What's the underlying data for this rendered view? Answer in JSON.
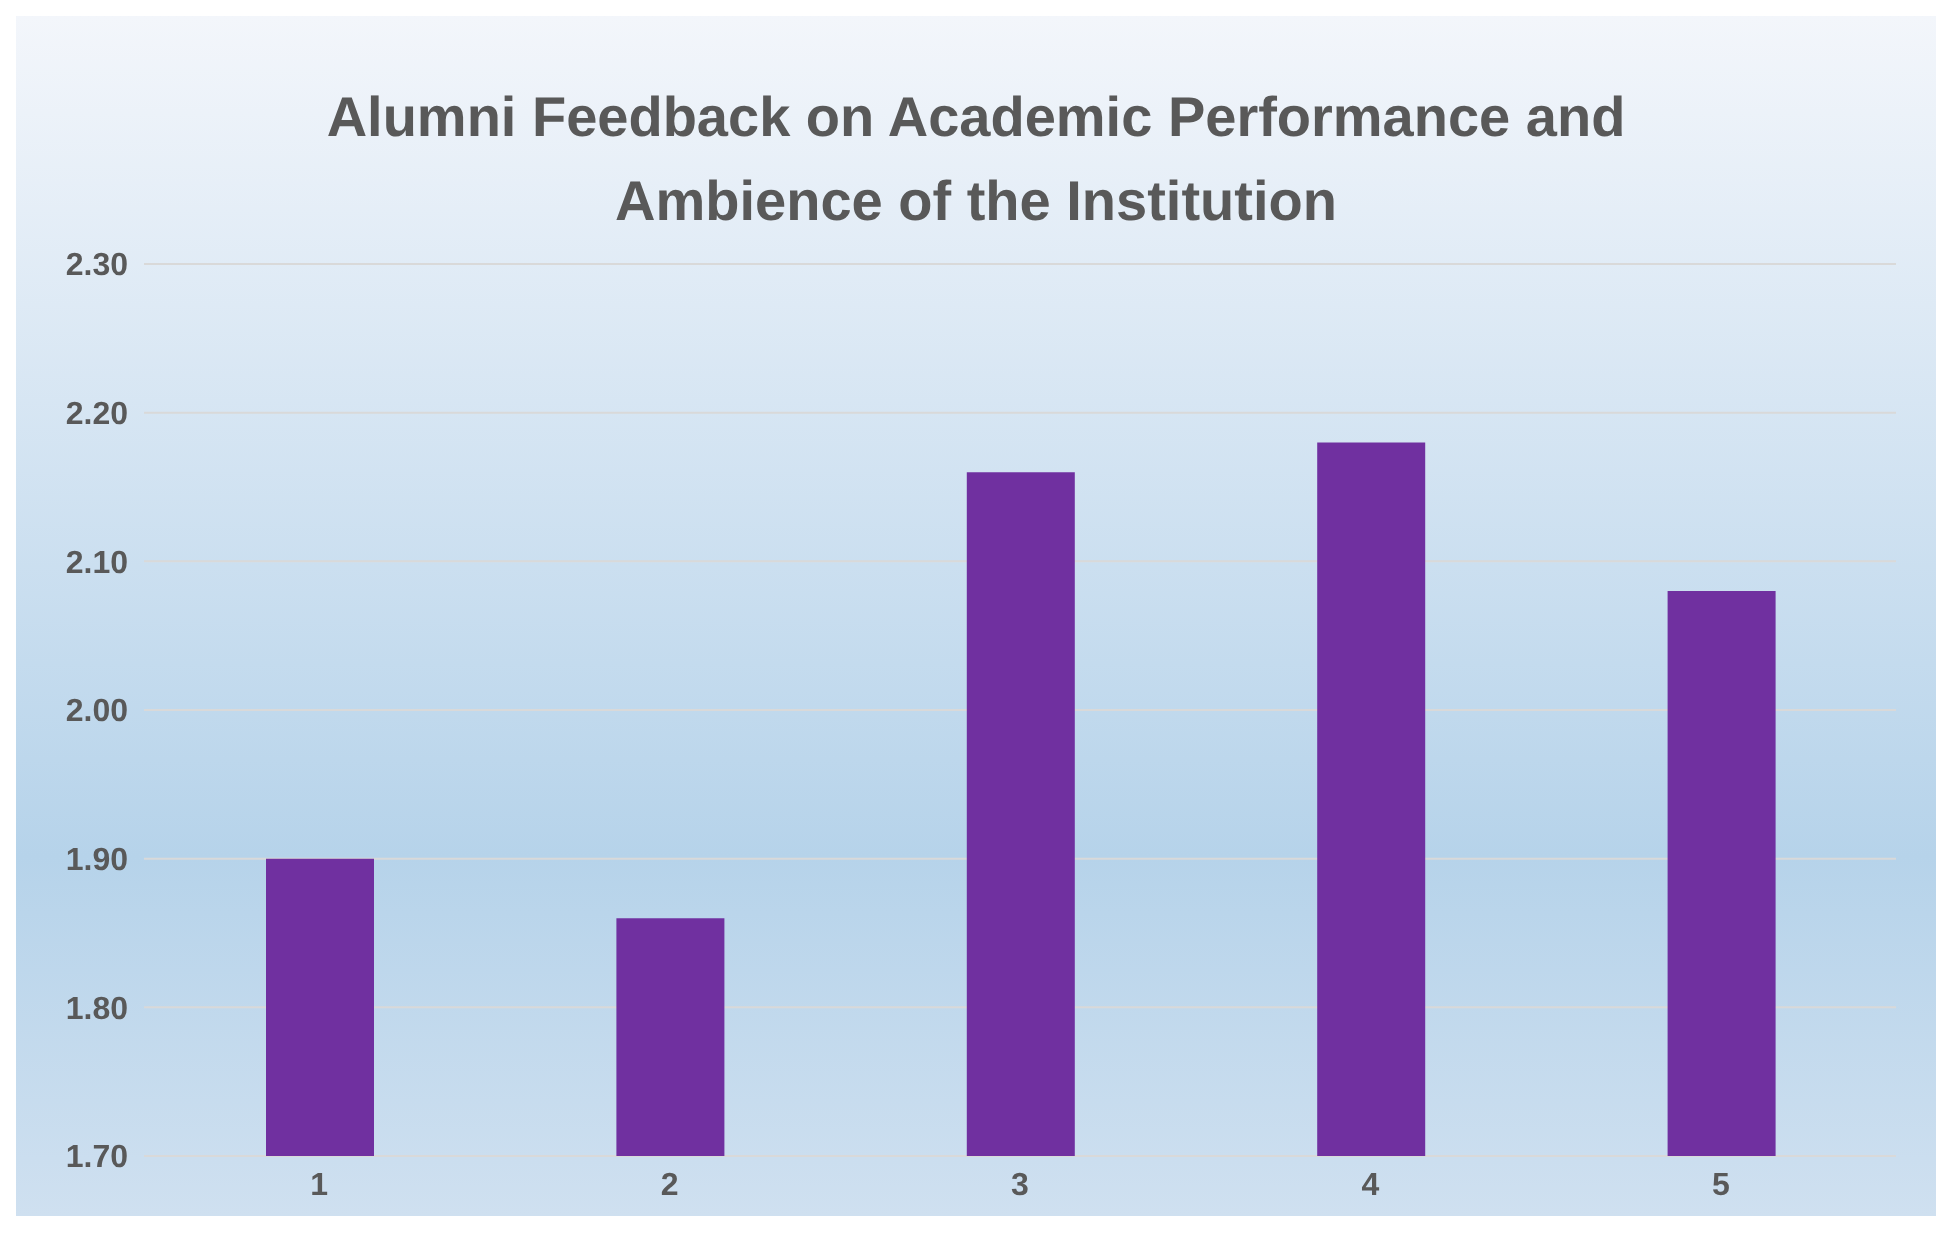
{
  "chart_data": {
    "type": "bar",
    "title": "Alumni Feedback on Academic Performance and Ambience of the Institution",
    "categories": [
      "1",
      "2",
      "3",
      "4",
      "5"
    ],
    "values": [
      1.9,
      1.86,
      2.16,
      2.18,
      2.08
    ],
    "color": "#7030a0",
    "ylim": [
      1.7,
      2.3
    ],
    "yticks": [
      {
        "value": 1.7,
        "label": "1.70"
      },
      {
        "value": 1.8,
        "label": "1.80"
      },
      {
        "value": 1.9,
        "label": "1.90"
      },
      {
        "value": 2.0,
        "label": "2.00"
      },
      {
        "value": 2.1,
        "label": "2.10"
      },
      {
        "value": 2.2,
        "label": "2.20"
      },
      {
        "value": 2.3,
        "label": "2.30"
      }
    ],
    "grid": "y"
  }
}
